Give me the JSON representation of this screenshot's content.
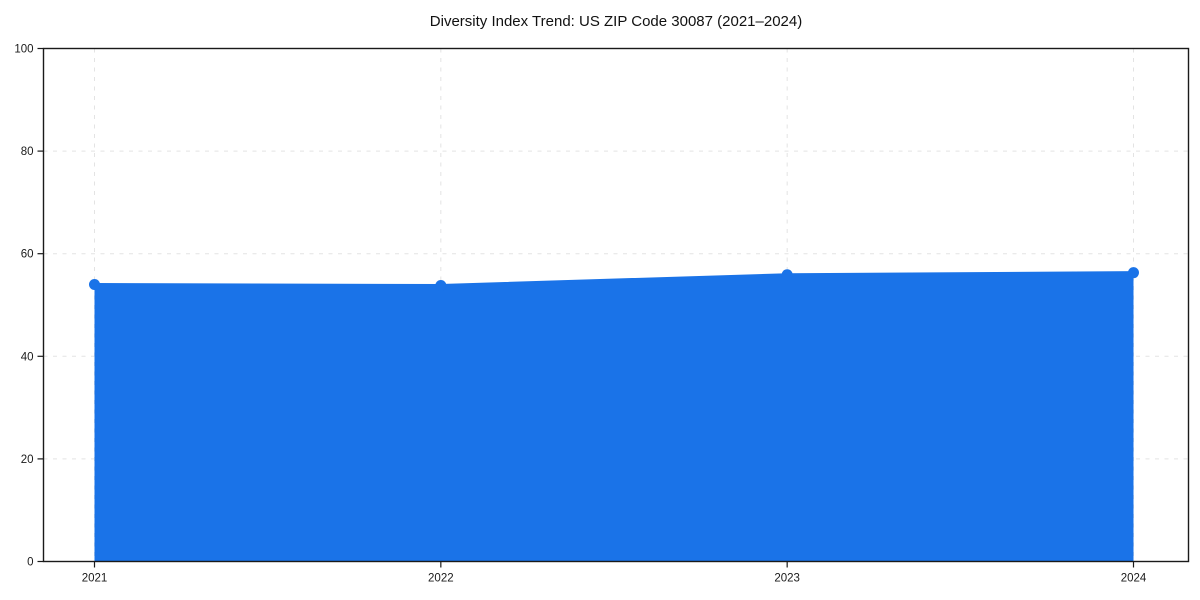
{
  "chart_data": {
    "type": "line",
    "title": "Diversity Index Trend: US ZIP Code 30087 (2021–2024)",
    "x_categories": [
      "2021",
      "2022",
      "2023",
      "2024"
    ],
    "series": [
      {
        "name": "Diversity Index",
        "values": [
          54.0,
          53.8,
          55.9,
          56.3
        ]
      }
    ],
    "ylim": [
      0,
      100
    ],
    "yticks": [
      0,
      20,
      40,
      60,
      80,
      100
    ],
    "xlabel": "",
    "ylabel": "",
    "grid": "dashed-both-axes",
    "legend": "none",
    "marker": "circle",
    "area_fill_under_line": true,
    "colors": {
      "line": "#1a73e8",
      "marker": "#1a73e8",
      "fill": "#1a73e8",
      "fill_opacity": 0.12,
      "grid": "#e3e3e3",
      "spine": "#1a1a1a",
      "tick_label": "#1a1a1a",
      "background": "#ffffff"
    }
  }
}
